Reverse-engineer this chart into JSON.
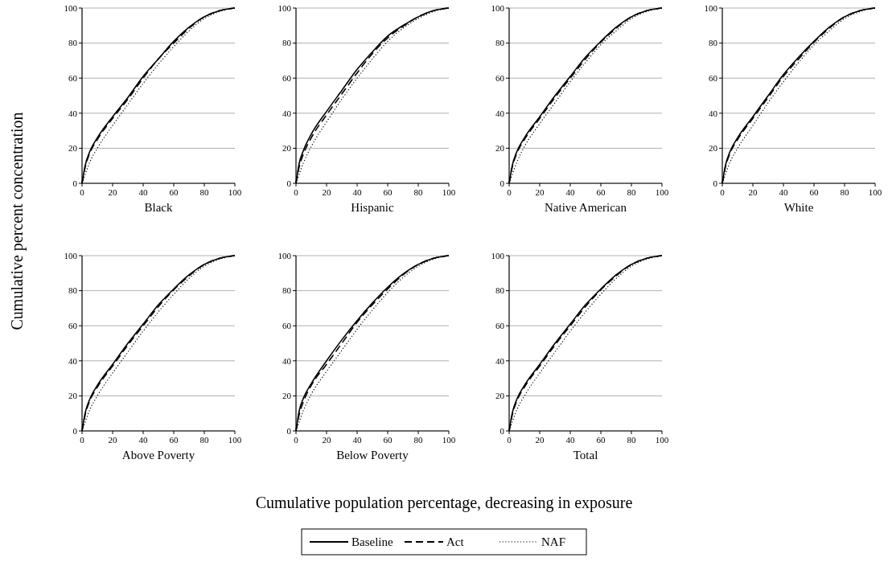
{
  "chart_data": [
    {
      "type": "line",
      "xlabel": "Black",
      "ylabel": "Cumulative percent concentration",
      "annotations": [
        "Cumulative population percentage, decreasing in exposure"
      ],
      "legend": "bottom",
      "grid": "y",
      "xlim": [
        0,
        100
      ],
      "ylim": [
        0,
        100
      ],
      "xticks": [
        0,
        20,
        40,
        60,
        80,
        100
      ],
      "yticks": [
        0,
        20,
        40,
        60,
        80,
        100
      ],
      "x": [
        0,
        2,
        5,
        10,
        20,
        30,
        40,
        50,
        60,
        70,
        80,
        90,
        100
      ],
      "series": [
        {
          "name": "Baseline",
          "color": "#000000",
          "line_style": "solid",
          "values": [
            0,
            10,
            18,
            26,
            38,
            49,
            61,
            71,
            81,
            89,
            95,
            98.5,
            100
          ]
        },
        {
          "name": "Act",
          "color": "#000000",
          "line_style": "dashed",
          "values": [
            0,
            9,
            17,
            25,
            37,
            48,
            60,
            71,
            80,
            88.5,
            95,
            98.5,
            100
          ]
        },
        {
          "name": "NAF",
          "color": "#000000",
          "line_style": "dotted",
          "values": [
            0,
            5,
            12,
            20,
            33,
            45,
            57,
            68,
            78,
            87,
            94,
            98,
            100
          ]
        }
      ]
    },
    {
      "type": "line",
      "xlabel": "Hispanic",
      "grid": "y",
      "xlim": [
        0,
        100
      ],
      "ylim": [
        0,
        100
      ],
      "xticks": [
        0,
        20,
        40,
        60,
        80,
        100
      ],
      "yticks": [
        0,
        20,
        40,
        60,
        80,
        100
      ],
      "x": [
        0,
        2,
        5,
        10,
        20,
        30,
        40,
        50,
        60,
        70,
        80,
        90,
        100
      ],
      "series": [
        {
          "color": "#000000",
          "line_style": "solid",
          "values": [
            0,
            11,
            19,
            28,
            41,
            53,
            65,
            75,
            84,
            90,
            95,
            98.5,
            100
          ]
        },
        {
          "color": "#000000",
          "line_style": "dashed",
          "values": [
            0,
            9,
            17,
            26,
            39,
            51,
            63,
            74,
            83,
            89.5,
            95,
            98.5,
            100
          ]
        },
        {
          "color": "#000000",
          "line_style": "dotted",
          "values": [
            0,
            5,
            12,
            21,
            35,
            48,
            60,
            71,
            81,
            88.5,
            94,
            98,
            100
          ]
        }
      ]
    },
    {
      "type": "line",
      "xlabel": "Native American",
      "grid": "y",
      "xlim": [
        0,
        100
      ],
      "ylim": [
        0,
        100
      ],
      "xticks": [
        0,
        20,
        40,
        60,
        80,
        100
      ],
      "yticks": [
        0,
        20,
        40,
        60,
        80,
        100
      ],
      "x": [
        0,
        2,
        5,
        10,
        20,
        30,
        40,
        50,
        60,
        70,
        80,
        90,
        100
      ],
      "series": [
        {
          "color": "#000000",
          "line_style": "solid",
          "values": [
            0,
            10,
            18,
            26,
            38,
            50,
            61,
            72,
            81,
            89,
            95,
            98.5,
            100
          ]
        },
        {
          "color": "#000000",
          "line_style": "dashed",
          "values": [
            0,
            9,
            17,
            25,
            37,
            49,
            60,
            71,
            80.5,
            88.5,
            95,
            98.5,
            100
          ]
        },
        {
          "color": "#000000",
          "line_style": "dotted",
          "values": [
            0,
            5,
            12,
            21,
            34,
            46,
            58,
            69,
            79,
            87,
            94,
            98,
            100
          ]
        }
      ]
    },
    {
      "type": "line",
      "xlabel": "White",
      "grid": "y",
      "xlim": [
        0,
        100
      ],
      "ylim": [
        0,
        100
      ],
      "xticks": [
        0,
        20,
        40,
        60,
        80,
        100
      ],
      "yticks": [
        0,
        20,
        40,
        60,
        80,
        100
      ],
      "x": [
        0,
        2,
        5,
        10,
        20,
        30,
        40,
        50,
        60,
        70,
        80,
        90,
        100
      ],
      "series": [
        {
          "color": "#000000",
          "line_style": "solid",
          "values": [
            0,
            10,
            18,
            26,
            38,
            50,
            62,
            72,
            81,
            89,
            95,
            98.5,
            100
          ]
        },
        {
          "color": "#000000",
          "line_style": "dashed",
          "values": [
            0,
            9,
            17,
            25,
            37,
            49,
            61,
            71,
            80.5,
            88.5,
            95,
            98.5,
            100
          ]
        },
        {
          "color": "#000000",
          "line_style": "dotted",
          "values": [
            0,
            5,
            12,
            20,
            33,
            46,
            58,
            69,
            79,
            87,
            94,
            98,
            100
          ]
        }
      ]
    },
    {
      "type": "line",
      "xlabel": "Above Poverty",
      "grid": "y",
      "xlim": [
        0,
        100
      ],
      "ylim": [
        0,
        100
      ],
      "xticks": [
        0,
        20,
        40,
        60,
        80,
        100
      ],
      "yticks": [
        0,
        20,
        40,
        60,
        80,
        100
      ],
      "x": [
        0,
        2,
        5,
        10,
        20,
        30,
        40,
        50,
        60,
        70,
        80,
        90,
        100
      ],
      "series": [
        {
          "color": "#000000",
          "line_style": "solid",
          "values": [
            0,
            10,
            18,
            26,
            38,
            50,
            61,
            72,
            81,
            89,
            95,
            98.5,
            100
          ]
        },
        {
          "color": "#000000",
          "line_style": "dashed",
          "values": [
            0,
            9,
            17,
            25,
            37,
            49,
            60,
            71,
            80.5,
            88.5,
            95,
            98.5,
            100
          ]
        },
        {
          "color": "#000000",
          "line_style": "dotted",
          "values": [
            0,
            5,
            12,
            20,
            33,
            45,
            57,
            68,
            78,
            87,
            94,
            98,
            100
          ]
        }
      ]
    },
    {
      "type": "line",
      "xlabel": "Below Poverty",
      "grid": "y",
      "xlim": [
        0,
        100
      ],
      "ylim": [
        0,
        100
      ],
      "xticks": [
        0,
        20,
        40,
        60,
        80,
        100
      ],
      "yticks": [
        0,
        20,
        40,
        60,
        80,
        100
      ],
      "x": [
        0,
        2,
        5,
        10,
        20,
        30,
        40,
        50,
        60,
        70,
        80,
        90,
        100
      ],
      "series": [
        {
          "color": "#000000",
          "line_style": "solid",
          "values": [
            0,
            11,
            19,
            27,
            40,
            52,
            63,
            73,
            82,
            89.5,
            95,
            98.5,
            100
          ]
        },
        {
          "color": "#000000",
          "line_style": "dashed",
          "values": [
            0,
            9,
            17,
            26,
            38,
            50,
            62,
            72,
            81,
            89,
            95,
            98.5,
            100
          ]
        },
        {
          "color": "#000000",
          "line_style": "dotted",
          "values": [
            0,
            5,
            12,
            21,
            34,
            46,
            58,
            69,
            79,
            87.5,
            94,
            98,
            100
          ]
        }
      ]
    },
    {
      "type": "line",
      "xlabel": "Total",
      "grid": "y",
      "xlim": [
        0,
        100
      ],
      "ylim": [
        0,
        100
      ],
      "xticks": [
        0,
        20,
        40,
        60,
        80,
        100
      ],
      "yticks": [
        0,
        20,
        40,
        60,
        80,
        100
      ],
      "x": [
        0,
        2,
        5,
        10,
        20,
        30,
        40,
        50,
        60,
        70,
        80,
        90,
        100
      ],
      "series": [
        {
          "color": "#000000",
          "line_style": "solid",
          "values": [
            0,
            10,
            18,
            26,
            38,
            50,
            61,
            72,
            81,
            89,
            95,
            98.5,
            100
          ]
        },
        {
          "color": "#000000",
          "line_style": "dashed",
          "values": [
            0,
            9,
            17,
            25,
            37,
            49,
            60,
            71,
            80.5,
            88.5,
            95,
            98.5,
            100
          ]
        },
        {
          "color": "#000000",
          "line_style": "dotted",
          "values": [
            0,
            5,
            12,
            20,
            33,
            45,
            57,
            68,
            78,
            87,
            94,
            98,
            100
          ]
        }
      ]
    }
  ]
}
